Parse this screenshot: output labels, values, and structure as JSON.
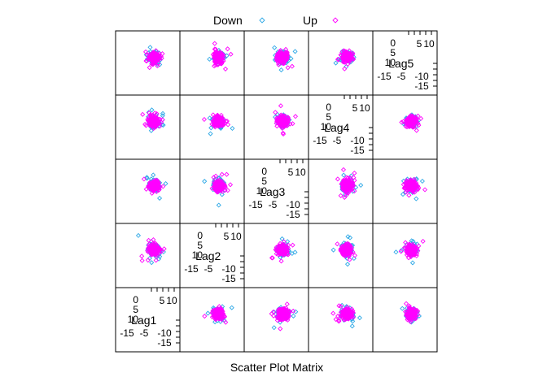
{
  "chart_data": {
    "type": "scatter",
    "subtype": "scatter-plot-matrix",
    "xlabel": "Scatter Plot Matrix",
    "variables": [
      "Lag1",
      "Lag2",
      "Lag3",
      "Lag4",
      "Lag5"
    ],
    "range": [
      -18,
      13
    ],
    "diagonal_ticks": {
      "top_right": [
        "5",
        "10"
      ],
      "top_left": [
        "0",
        "5",
        "10"
      ],
      "bottom_left": [
        "-15",
        "-5",
        "-10",
        "-15"
      ]
    },
    "series": [
      {
        "name": "Down",
        "color": "#2ea8e6",
        "marker": "diamond-open",
        "center": [
          0,
          0
        ],
        "spread": 1.8,
        "count": 180
      },
      {
        "name": "Up",
        "color": "#ff00ff",
        "marker": "diamond-open",
        "center": [
          0,
          0
        ],
        "spread": 1.9,
        "count": 200
      }
    ],
    "legend_placement": "top",
    "grid": false
  },
  "legend": {
    "down_label": "Down",
    "up_label": "Up"
  },
  "colors": {
    "down": "#2ea8e6",
    "up": "#ff00ff",
    "frame": "#000000"
  }
}
